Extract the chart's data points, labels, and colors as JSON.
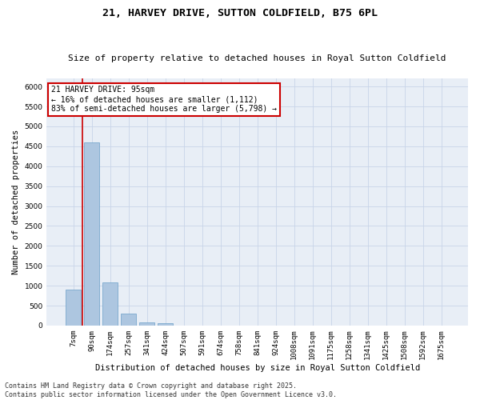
{
  "title": "21, HARVEY DRIVE, SUTTON COLDFIELD, B75 6PL",
  "subtitle": "Size of property relative to detached houses in Royal Sutton Coldfield",
  "xlabel": "Distribution of detached houses by size in Royal Sutton Coldfield",
  "ylabel": "Number of detached properties",
  "categories": [
    "7sqm",
    "90sqm",
    "174sqm",
    "257sqm",
    "341sqm",
    "424sqm",
    "507sqm",
    "591sqm",
    "674sqm",
    "758sqm",
    "841sqm",
    "924sqm",
    "1008sqm",
    "1091sqm",
    "1175sqm",
    "1258sqm",
    "1341sqm",
    "1425sqm",
    "1508sqm",
    "1592sqm",
    "1675sqm"
  ],
  "values": [
    900,
    4600,
    1090,
    300,
    85,
    55,
    0,
    0,
    0,
    0,
    0,
    0,
    0,
    0,
    0,
    0,
    0,
    0,
    0,
    0,
    0
  ],
  "bar_color": "#adc6e0",
  "bar_edge_color": "#6a9fc8",
  "vertical_line_x": 0.5,
  "annotation_title": "21 HARVEY DRIVE: 95sqm",
  "annotation_line1": "← 16% of detached houses are smaller (1,112)",
  "annotation_line2": "83% of semi-detached houses are larger (5,798) →",
  "annotation_box_facecolor": "#ffffff",
  "annotation_box_edgecolor": "#cc0000",
  "vline_color": "#cc0000",
  "ylim": [
    0,
    6200
  ],
  "yticks": [
    0,
    500,
    1000,
    1500,
    2000,
    2500,
    3000,
    3500,
    4000,
    4500,
    5000,
    5500,
    6000
  ],
  "grid_color": "#c8d4e8",
  "bg_color": "#e8eef6",
  "footer": "Contains HM Land Registry data © Crown copyright and database right 2025.\nContains public sector information licensed under the Open Government Licence v3.0.",
  "title_fontsize": 9.5,
  "subtitle_fontsize": 8,
  "xlabel_fontsize": 7.5,
  "ylabel_fontsize": 7.5,
  "tick_fontsize": 6.5,
  "annotation_fontsize": 7,
  "footer_fontsize": 6
}
